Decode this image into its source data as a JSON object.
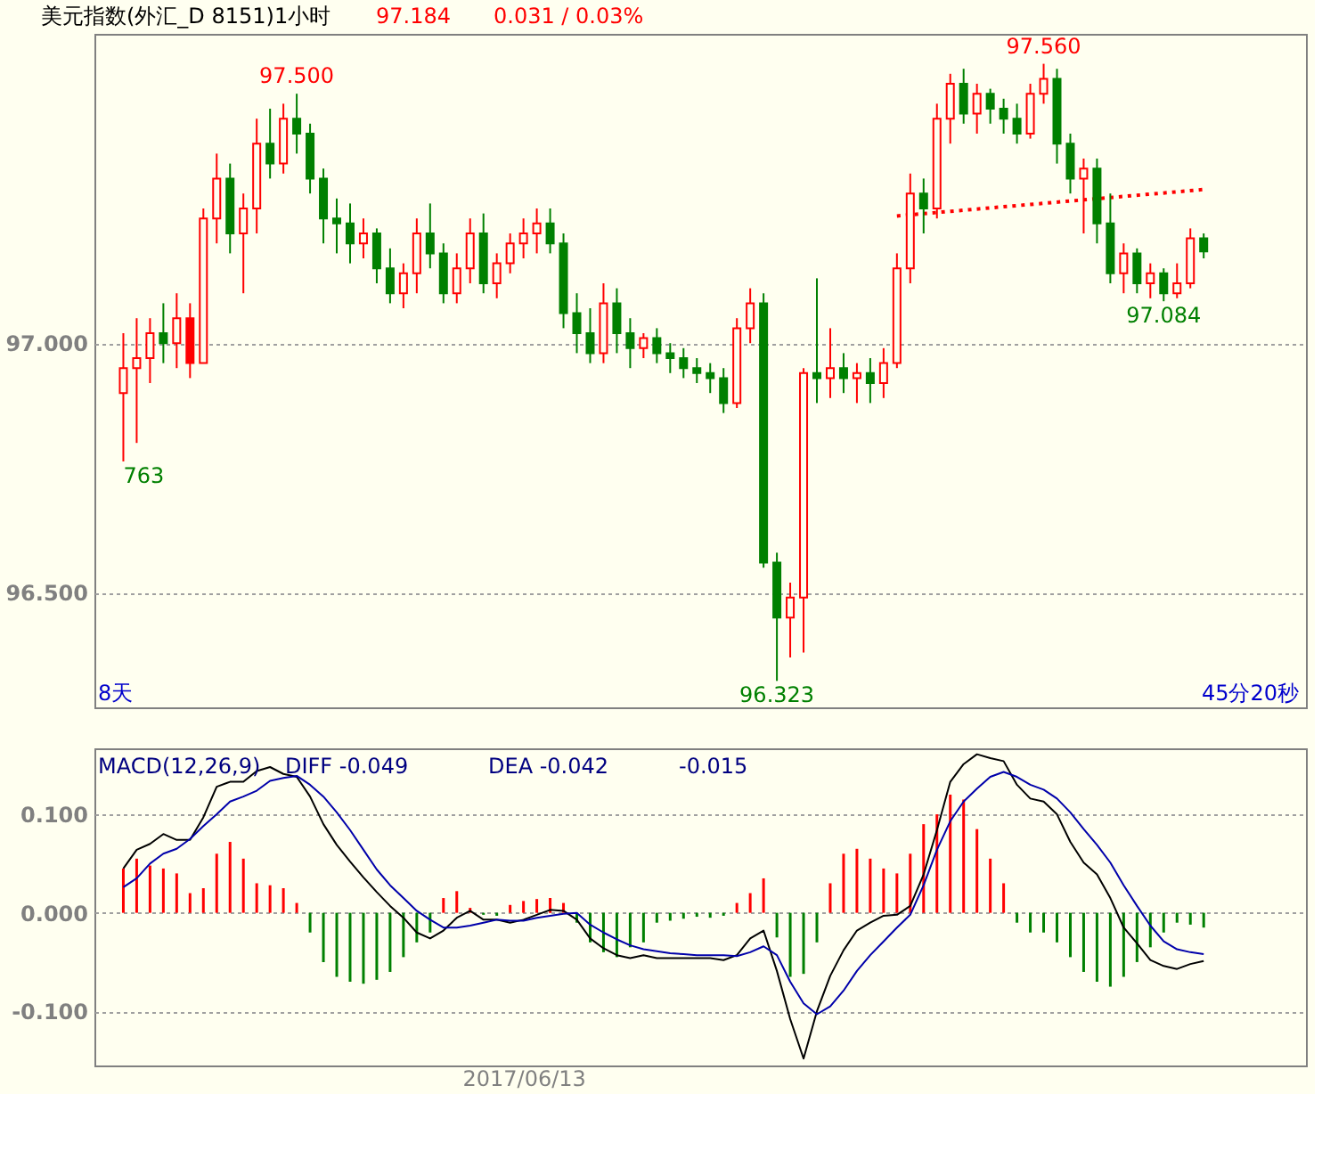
{
  "chart_data": [
    {
      "type": "candlestick",
      "title": "美元指数(外汇_D 8151)1小时",
      "categories": [
        null,
        null,
        null,
        null,
        null,
        null,
        null,
        null,
        null,
        null,
        null,
        null,
        null,
        null,
        null,
        null,
        null,
        null,
        null,
        null,
        null,
        null,
        null,
        null,
        null,
        null,
        null,
        null,
        null,
        null,
        null,
        null,
        null,
        null,
        null,
        null,
        null,
        null,
        null,
        null,
        null,
        null,
        null,
        null,
        null,
        null,
        null,
        null,
        null,
        null,
        null,
        null,
        null,
        null,
        null,
        null,
        null,
        null,
        null,
        null,
        null,
        null,
        null,
        null,
        null,
        null,
        null,
        null,
        null,
        null,
        null,
        null,
        null,
        null,
        null,
        null,
        null,
        null,
        null,
        null,
        null,
        null
      ],
      "ohlc": [
        [
          96.9,
          97.02,
          96.763,
          96.95
        ],
        [
          96.95,
          97.05,
          96.8,
          96.97
        ],
        [
          96.97,
          97.05,
          96.92,
          97.02
        ],
        [
          97.02,
          97.08,
          96.96,
          97.0
        ],
        [
          97.0,
          97.1,
          96.95,
          97.05
        ],
        [
          97.05,
          97.08,
          96.93,
          96.96
        ],
        [
          96.96,
          97.27,
          96.96,
          97.25
        ],
        [
          97.25,
          97.38,
          97.2,
          97.33
        ],
        [
          97.33,
          97.36,
          97.18,
          97.22
        ],
        [
          97.22,
          97.3,
          97.1,
          97.27
        ],
        [
          97.27,
          97.45,
          97.22,
          97.4
        ],
        [
          97.4,
          97.47,
          97.33,
          97.36
        ],
        [
          97.36,
          97.48,
          97.34,
          97.45
        ],
        [
          97.45,
          97.5,
          97.38,
          97.42
        ],
        [
          97.42,
          97.44,
          97.3,
          97.33
        ],
        [
          97.33,
          97.35,
          97.2,
          97.25
        ],
        [
          97.25,
          97.29,
          97.18,
          97.24
        ],
        [
          97.24,
          97.28,
          97.16,
          97.2
        ],
        [
          97.2,
          97.25,
          97.17,
          97.22
        ],
        [
          97.22,
          97.23,
          97.12,
          97.15
        ],
        [
          97.15,
          97.19,
          97.08,
          97.1
        ],
        [
          97.1,
          97.16,
          97.07,
          97.14
        ],
        [
          97.14,
          97.25,
          97.1,
          97.22
        ],
        [
          97.22,
          97.28,
          97.15,
          97.18
        ],
        [
          97.18,
          97.2,
          97.08,
          97.1
        ],
        [
          97.1,
          97.18,
          97.08,
          97.15
        ],
        [
          97.15,
          97.25,
          97.12,
          97.22
        ],
        [
          97.22,
          97.26,
          97.1,
          97.12
        ],
        [
          97.12,
          97.18,
          97.09,
          97.16
        ],
        [
          97.16,
          97.22,
          97.14,
          97.2
        ],
        [
          97.2,
          97.25,
          97.17,
          97.22
        ],
        [
          97.22,
          97.27,
          97.18,
          97.24
        ],
        [
          97.24,
          97.27,
          97.18,
          97.2
        ],
        [
          97.2,
          97.22,
          97.03,
          97.06
        ],
        [
          97.06,
          97.1,
          96.98,
          97.02
        ],
        [
          97.02,
          97.07,
          96.96,
          96.98
        ],
        [
          96.98,
          97.12,
          96.96,
          97.08
        ],
        [
          97.08,
          97.11,
          96.98,
          97.02
        ],
        [
          97.02,
          97.05,
          96.95,
          96.99
        ],
        [
          96.99,
          97.02,
          96.97,
          97.01
        ],
        [
          97.01,
          97.03,
          96.96,
          96.98
        ],
        [
          96.98,
          97.0,
          96.94,
          96.97
        ],
        [
          96.97,
          96.99,
          96.93,
          96.95
        ],
        [
          96.95,
          96.97,
          96.92,
          96.94
        ],
        [
          96.94,
          96.96,
          96.9,
          96.93
        ],
        [
          96.93,
          96.95,
          96.86,
          96.88
        ],
        [
          96.88,
          97.05,
          96.87,
          97.03
        ],
        [
          97.03,
          97.11,
          97.0,
          97.08
        ],
        [
          97.08,
          97.1,
          96.55,
          96.56
        ],
        [
          96.56,
          96.58,
          96.323,
          96.45
        ],
        [
          96.45,
          96.52,
          96.37,
          96.49
        ],
        [
          96.49,
          96.95,
          96.38,
          96.94
        ],
        [
          96.94,
          97.13,
          96.88,
          96.93
        ],
        [
          96.93,
          97.03,
          96.89,
          96.95
        ],
        [
          96.95,
          96.98,
          96.9,
          96.93
        ],
        [
          96.93,
          96.96,
          96.88,
          96.94
        ],
        [
          96.94,
          96.97,
          96.88,
          96.92
        ],
        [
          96.92,
          96.99,
          96.89,
          96.96
        ],
        [
          96.96,
          97.18,
          96.95,
          97.15
        ],
        [
          97.15,
          97.34,
          97.12,
          97.3
        ],
        [
          97.3,
          97.33,
          97.22,
          97.27
        ],
        [
          97.27,
          97.48,
          97.25,
          97.45
        ],
        [
          97.45,
          97.54,
          97.4,
          97.52
        ],
        [
          97.52,
          97.55,
          97.44,
          97.46
        ],
        [
          97.46,
          97.52,
          97.42,
          97.5
        ],
        [
          97.5,
          97.51,
          97.44,
          97.47
        ],
        [
          97.47,
          97.49,
          97.42,
          97.45
        ],
        [
          97.45,
          97.48,
          97.4,
          97.42
        ],
        [
          97.42,
          97.52,
          97.41,
          97.5
        ],
        [
          97.5,
          97.56,
          97.48,
          97.53
        ],
        [
          97.53,
          97.55,
          97.36,
          97.4
        ],
        [
          97.4,
          97.42,
          97.3,
          97.33
        ],
        [
          97.33,
          97.37,
          97.22,
          97.35
        ],
        [
          97.35,
          97.37,
          97.2,
          97.24
        ],
        [
          97.24,
          97.3,
          97.12,
          97.14
        ],
        [
          97.14,
          97.2,
          97.1,
          97.18
        ],
        [
          97.18,
          97.19,
          97.1,
          97.12
        ],
        [
          97.12,
          97.16,
          97.09,
          97.14
        ],
        [
          97.14,
          97.15,
          97.084,
          97.1
        ],
        [
          97.1,
          97.16,
          97.09,
          97.12
        ],
        [
          97.12,
          97.23,
          97.11,
          97.21
        ],
        [
          97.21,
          97.22,
          97.17,
          97.184
        ]
      ],
      "colors": [
        "#ff0000",
        "#ff0000",
        "#ff0000",
        "#008000",
        "#ff0000",
        "#ff0000",
        "#ff0000",
        "#ff0000",
        "#008000",
        "#ff0000",
        "#ff0000",
        "#008000",
        "#ff0000",
        "#008000",
        "#008000",
        "#008000",
        "#008000",
        "#008000",
        "#ff0000",
        "#008000",
        "#008000",
        "#ff0000",
        "#ff0000",
        "#008000",
        "#008000",
        "#ff0000",
        "#ff0000",
        "#008000",
        "#ff0000",
        "#ff0000",
        "#ff0000",
        "#ff0000",
        "#008000",
        "#008000",
        "#008000",
        "#008000",
        "#ff0000",
        "#008000",
        "#008000",
        "#ff0000",
        "#008000",
        "#008000",
        "#008000",
        "#008000",
        "#008000",
        "#008000",
        "#ff0000",
        "#ff0000",
        "#008000",
        "#008000",
        "#ff0000",
        "#ff0000",
        "#008000",
        "#ff0000",
        "#008000",
        "#ff0000",
        "#008000",
        "#ff0000",
        "#ff0000",
        "#ff0000",
        "#008000",
        "#ff0000",
        "#ff0000",
        "#008000",
        "#ff0000",
        "#008000",
        "#008000",
        "#008000",
        "#ff0000",
        "#ff0000",
        "#008000",
        "#008000",
        "#ff0000",
        "#008000",
        "#008000",
        "#ff0000",
        "#008000",
        "#ff0000",
        "#008000",
        "#ff0000",
        "#ff0000",
        "#008000"
      ],
      "series": [
        {
          "type": "line",
          "color": "#ff0000",
          "line_style": "dotted",
          "values": [
            null,
            null,
            null,
            null,
            null,
            null,
            null,
            null,
            null,
            null,
            null,
            null,
            null,
            null,
            null,
            null,
            null,
            null,
            null,
            null,
            null,
            null,
            null,
            null,
            null,
            null,
            null,
            null,
            null,
            null,
            null,
            null,
            null,
            null,
            null,
            null,
            null,
            null,
            null,
            null,
            null,
            null,
            null,
            null,
            null,
            null,
            null,
            null,
            null,
            null,
            null,
            null,
            null,
            null,
            null,
            null,
            null,
            null,
            97.255,
            null,
            null,
            null,
            null,
            null,
            null,
            null,
            null,
            null,
            null,
            null,
            null,
            null,
            null,
            null,
            null,
            null,
            null,
            null,
            null,
            null,
            null,
            97.308
          ]
        }
      ],
      "ylim": [
        96.27,
        97.62
      ],
      "yticks": [
        {
          "value": 96.5,
          "label": "96.500"
        },
        {
          "value": 97,
          "label": "97.000"
        }
      ],
      "grid": "y",
      "tick_labels": "y",
      "annotations": [
        "97.184",
        "0.031 / 0.03%",
        "8天",
        "45分20秒",
        "763",
        {
          "text": "97.500",
          "y": 97.5
        },
        {
          "text": "97.560",
          "y": 97.56
        },
        {
          "text": "96.323",
          "y": 96.323
        },
        {
          "text": "97.084",
          "y": 97.084
        }
      ]
    },
    {
      "type": "bar",
      "title": "MACD(12,26,9)",
      "categories": [
        null,
        null,
        null,
        null,
        null,
        null,
        null,
        null,
        null,
        null,
        null,
        null,
        null,
        null,
        null,
        null,
        null,
        null,
        null,
        null,
        null,
        null,
        null,
        null,
        null,
        null,
        null,
        null,
        null,
        null,
        "2017/06/13",
        null,
        null,
        null,
        null,
        null,
        null,
        null,
        null,
        null,
        null,
        null,
        null,
        null,
        null,
        null,
        null,
        null,
        null,
        null,
        null,
        null,
        null,
        null,
        null,
        null,
        null,
        null,
        null,
        null,
        null,
        null,
        null,
        null,
        null,
        null,
        null,
        null,
        null,
        null,
        null,
        null,
        null,
        null,
        null,
        null,
        null,
        null,
        null,
        null,
        null,
        null
      ],
      "series": [
        {
          "type": "bar",
          "color": "#ff0000",
          "values": [
            0.045,
            0.055,
            0.048,
            0.045,
            0.04,
            0.02,
            0.025,
            0.06,
            0.072,
            0.055,
            0.03,
            0.028,
            0.025,
            0.01,
            null,
            null,
            null,
            null,
            null,
            null,
            null,
            null,
            null,
            null,
            0.015,
            0.022,
            0.005,
            null,
            null,
            0.008,
            0.012,
            0.014,
            0.015,
            0.01,
            null,
            null,
            null,
            null,
            null,
            null,
            null,
            null,
            null,
            null,
            null,
            null,
            0.01,
            0.02,
            0.035,
            null,
            null,
            null,
            null,
            0.03,
            0.06,
            0.065,
            0.055,
            0.045,
            0.04,
            0.06,
            0.09,
            0.1,
            0.12,
            0.115,
            0.085,
            0.055,
            0.03,
            null,
            null,
            null,
            null,
            null,
            null,
            null,
            null,
            null,
            null,
            null,
            null,
            null,
            null,
            null
          ]
        },
        {
          "type": "bar",
          "color": "#008000",
          "values": [
            null,
            null,
            null,
            null,
            null,
            null,
            null,
            null,
            null,
            null,
            null,
            null,
            null,
            null,
            -0.02,
            -0.05,
            -0.065,
            -0.07,
            -0.072,
            -0.068,
            -0.06,
            -0.045,
            -0.03,
            -0.02,
            null,
            null,
            null,
            -0.002,
            -0.003,
            null,
            null,
            null,
            null,
            null,
            -0.01,
            -0.03,
            -0.04,
            -0.045,
            -0.035,
            -0.03,
            -0.01,
            -0.008,
            -0.006,
            -0.004,
            -0.005,
            -0.003,
            null,
            null,
            null,
            -0.025,
            -0.065,
            -0.062,
            -0.03,
            null,
            null,
            null,
            null,
            null,
            null,
            null,
            null,
            null,
            null,
            null,
            null,
            null,
            null,
            -0.01,
            -0.02,
            -0.02,
            -0.03,
            -0.045,
            -0.06,
            -0.07,
            -0.075,
            -0.065,
            -0.05,
            -0.035,
            -0.02,
            -0.01,
            -0.012,
            -0.015
          ]
        },
        {
          "type": "line",
          "color": "#000000",
          "values": [
            0.045,
            0.064,
            0.07,
            0.08,
            0.074,
            0.074,
            0.097,
            0.128,
            0.133,
            0.133,
            0.144,
            0.148,
            0.141,
            0.138,
            0.118,
            0.09,
            0.069,
            0.052,
            0.036,
            0.021,
            0.007,
            -0.005,
            -0.02,
            -0.026,
            -0.018,
            -0.005,
            0.002,
            -0.007,
            -0.007,
            -0.01,
            -0.007,
            -0.002,
            0.003,
            0.002,
            -0.007,
            -0.026,
            -0.036,
            -0.043,
            -0.046,
            -0.043,
            -0.046,
            -0.046,
            -0.046,
            -0.046,
            -0.046,
            -0.048,
            -0.043,
            -0.026,
            -0.018,
            -0.059,
            -0.108,
            -0.148,
            -0.1,
            -0.064,
            -0.038,
            -0.018,
            -0.01,
            -0.003,
            -0.002,
            0.007,
            0.039,
            0.084,
            0.133,
            0.151,
            0.161,
            0.157,
            0.154,
            0.13,
            0.116,
            0.113,
            0.1,
            0.072,
            0.051,
            0.039,
            0.015,
            -0.015,
            -0.031,
            -0.048,
            -0.054,
            -0.057,
            -0.052,
            -0.049
          ]
        },
        {
          "type": "line",
          "color": "#0000aa",
          "values": [
            0.026,
            0.035,
            0.05,
            0.06,
            0.065,
            0.075,
            0.088,
            0.1,
            0.113,
            0.118,
            0.124,
            0.134,
            0.137,
            0.139,
            0.13,
            0.118,
            0.102,
            0.084,
            0.064,
            0.044,
            0.028,
            0.015,
            0.002,
            -0.007,
            -0.015,
            -0.015,
            -0.013,
            -0.01,
            -0.007,
            -0.008,
            -0.008,
            -0.005,
            -0.003,
            -0.001,
            0,
            -0.012,
            -0.02,
            -0.027,
            -0.033,
            -0.037,
            -0.039,
            -0.041,
            -0.042,
            -0.043,
            -0.043,
            -0.043,
            -0.044,
            -0.04,
            -0.034,
            -0.043,
            -0.07,
            -0.092,
            -0.103,
            -0.095,
            -0.079,
            -0.059,
            -0.043,
            -0.029,
            -0.015,
            -0.002,
            0.028,
            0.064,
            0.093,
            0.113,
            0.126,
            0.138,
            0.143,
            0.138,
            0.13,
            0.125,
            0.116,
            0.102,
            0.085,
            0.069,
            0.051,
            0.028,
            0.007,
            -0.013,
            -0.029,
            -0.037,
            -0.04,
            -0.042
          ]
        }
      ],
      "ylim": [
        -0.155,
        0.167
      ],
      "yticks": [
        {
          "value": -0.1,
          "label": "-0.100"
        },
        {
          "value": 0,
          "label": "0.000"
        },
        {
          "value": 0.1,
          "label": "0.100"
        }
      ],
      "grid": "y",
      "annotations": [
        "DIFF  -0.049",
        "DEA  -0.042",
        "-0.015"
      ]
    }
  ]
}
